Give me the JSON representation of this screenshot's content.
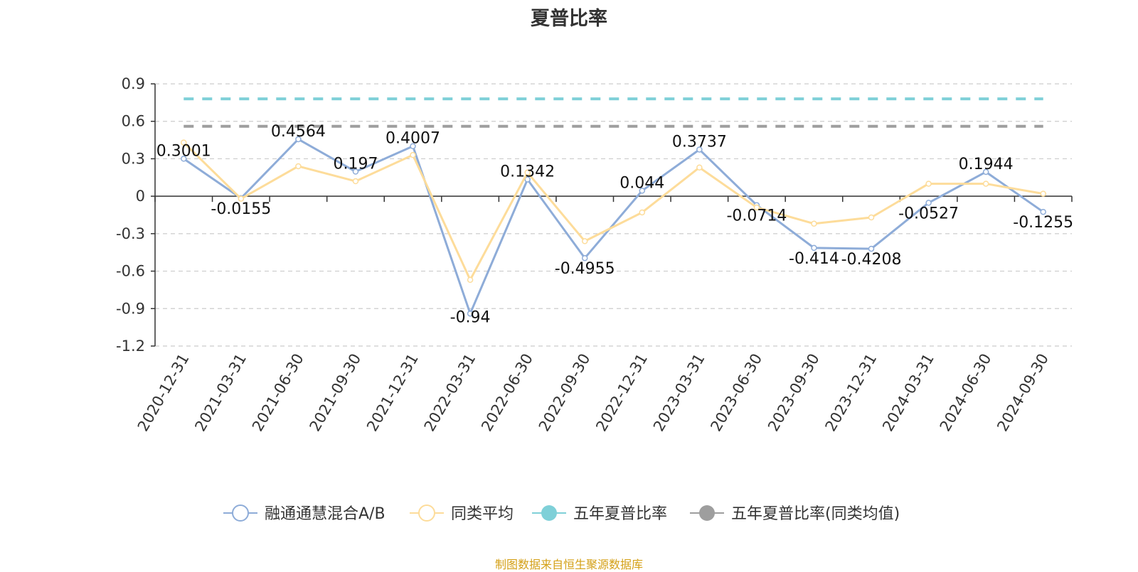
{
  "chart_data": {
    "type": "line",
    "title": "夏普比率",
    "xlabel": "",
    "ylabel": "",
    "ylim": [
      -1.2,
      0.9
    ],
    "yticks": [
      0.9,
      0.6,
      0.3,
      0,
      -0.3,
      -0.6,
      -0.9,
      -1.2
    ],
    "yticklabels": [
      "0.9",
      "0.6",
      "0.3",
      "0",
      "-0.3",
      "-0.6",
      "-0.9",
      "-1.2"
    ],
    "grid": true,
    "legend_position": "bottom-center",
    "categories": [
      "2020-12-31",
      "2021-03-31",
      "2021-06-30",
      "2021-09-30",
      "2021-12-31",
      "2022-03-31",
      "2022-06-30",
      "2022-09-30",
      "2022-12-31",
      "2023-03-31",
      "2023-06-30",
      "2023-09-30",
      "2023-12-31",
      "2024-03-31",
      "2024-06-30",
      "2024-09-30"
    ],
    "series": [
      {
        "name": "融通通慧混合A/B",
        "color": "#8eacd8",
        "style": "solid",
        "values": [
          0.3001,
          -0.0155,
          0.4564,
          0.197,
          0.4007,
          -0.94,
          0.1342,
          -0.4955,
          0.044,
          0.3737,
          -0.0714,
          -0.414,
          -0.4208,
          -0.0527,
          0.1944,
          -0.1255
        ],
        "labels": [
          "0.3001",
          "-0.0155",
          "0.4564",
          "0.197",
          "0.4007",
          "-0.94",
          "0.1342",
          "-0.4955",
          "0.044",
          "0.3737",
          "-0.0714",
          "-0.414",
          "-0.4208",
          "-0.0527",
          "0.1944",
          "-0.1255"
        ]
      },
      {
        "name": "同类平均",
        "color": "#fddc9a",
        "style": "solid",
        "values": [
          0.43,
          -0.02,
          0.24,
          0.12,
          0.33,
          -0.67,
          0.19,
          -0.36,
          -0.13,
          0.23,
          -0.09,
          -0.22,
          -0.17,
          0.1,
          0.1,
          0.02
        ]
      },
      {
        "name": "五年夏普比率",
        "color": "#7fd0d8",
        "style": "dashed",
        "values": [
          0.78,
          0.78,
          0.78,
          0.78,
          0.78,
          0.78,
          0.78,
          0.78,
          0.78,
          0.78,
          0.78,
          0.78,
          0.78,
          0.78,
          0.78,
          0.78
        ]
      },
      {
        "name": "五年夏普比率(同类均值)",
        "color": "#9e9e9e",
        "style": "dashed",
        "values": [
          0.56,
          0.56,
          0.56,
          0.56,
          0.56,
          0.56,
          0.56,
          0.56,
          0.56,
          0.56,
          0.56,
          0.56,
          0.56,
          0.56,
          0.56,
          0.56
        ]
      }
    ]
  },
  "source_note": "制图数据来自恒生聚源数据库"
}
